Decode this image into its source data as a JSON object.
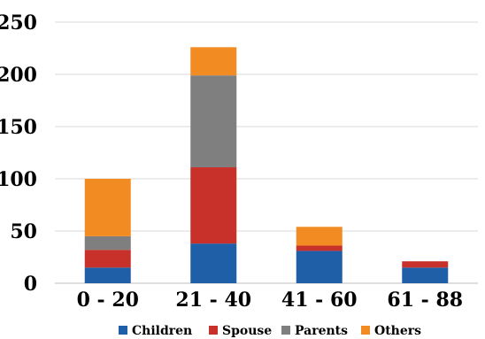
{
  "chart_data": {
    "type": "bar",
    "stacked": true,
    "categories": [
      "0 - 20",
      "21 - 40",
      "41 - 60",
      "61 - 88"
    ],
    "series": [
      {
        "name": "Children",
        "color": "#1f5fa8",
        "values": [
          15,
          38,
          31,
          15
        ]
      },
      {
        "name": "Spouse",
        "color": "#c8302a",
        "values": [
          17,
          73,
          5,
          6
        ]
      },
      {
        "name": "Parents",
        "color": "#7f7f7f",
        "values": [
          13,
          88,
          0,
          0
        ]
      },
      {
        "name": "Others",
        "color": "#f28b22",
        "values": [
          55,
          27,
          18,
          0
        ]
      }
    ],
    "ylim": [
      0,
      250
    ],
    "yticks": [
      "0",
      "50",
      "100",
      "150",
      "200",
      "250"
    ],
    "ytick_values": [
      0,
      50,
      100,
      150,
      200,
      250
    ],
    "grid": true,
    "legend_position": "bottom",
    "title": "",
    "xlabel": "",
    "ylabel": ""
  }
}
